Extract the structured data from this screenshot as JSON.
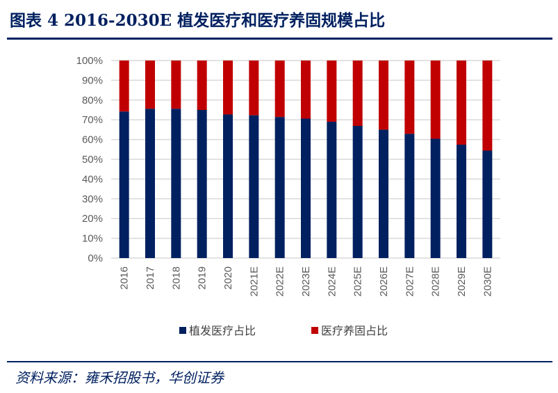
{
  "title": "图表 4   2016-2030E 植发医疗和医疗养固规模占比",
  "source": "资料来源：雍禾招股书，华创证券",
  "chart_data": {
    "type": "bar",
    "stacked": true,
    "title": "2016-2030E 植发医疗和医疗养固规模占比",
    "categories": [
      "2016",
      "2017",
      "2018",
      "2019",
      "2020",
      "2021E",
      "2022E",
      "2023E",
      "2024E",
      "2025E",
      "2026E",
      "2027E",
      "2028E",
      "2029E",
      "2030E"
    ],
    "series": [
      {
        "name": "植发医疗占比",
        "color": "#002060",
        "values": [
          74.2,
          75.6,
          75.6,
          75.0,
          72.7,
          72.3,
          71.4,
          70.6,
          69.0,
          66.9,
          65.0,
          62.9,
          60.4,
          57.4,
          54.4
        ]
      },
      {
        "name": "医疗养固占比",
        "color": "#C00000",
        "values": [
          25.8,
          24.4,
          24.4,
          25.0,
          27.3,
          27.7,
          28.6,
          29.4,
          31.0,
          33.1,
          35.0,
          37.1,
          39.6,
          42.6,
          45.6
        ]
      }
    ],
    "ylim": [
      0,
      100
    ],
    "yticks": [
      "0%",
      "10%",
      "20%",
      "30%",
      "40%",
      "50%",
      "60%",
      "70%",
      "80%",
      "90%",
      "100%"
    ],
    "grid": true,
    "legend": "bottom"
  }
}
